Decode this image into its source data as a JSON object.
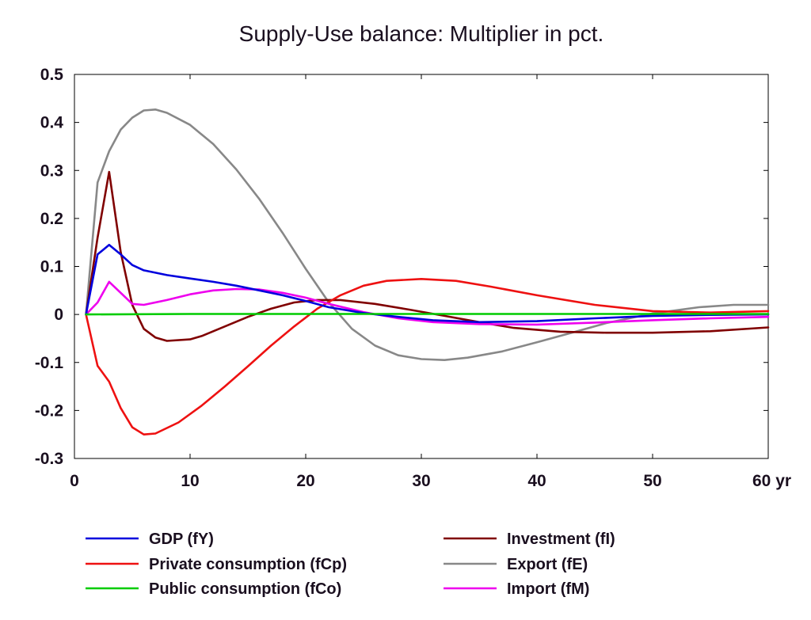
{
  "chart_data": {
    "type": "line",
    "title": "Supply-Use balance: Multiplier in pct.",
    "xlabel": "",
    "ylabel": "",
    "xlim": [
      0,
      60
    ],
    "ylim": [
      -0.3,
      0.5
    ],
    "x_ticks": [
      0,
      10,
      20,
      30,
      40,
      50,
      60
    ],
    "x_tick_labels": [
      "0",
      "10",
      "20",
      "30",
      "40",
      "50",
      "60 yr"
    ],
    "y_ticks": [
      0.5,
      0.4,
      0.3,
      0.2,
      0.1,
      0,
      -0.1,
      -0.2,
      -0.3
    ],
    "y_tick_labels": [
      "0.5",
      "0.4",
      "0.3",
      "0.2",
      "0.1",
      "0",
      "-0.1",
      "-0.2",
      "-0.3"
    ],
    "grid": false,
    "legend_position": "bottom",
    "series": [
      {
        "name": "GDP (fY)",
        "color": "#0000dd",
        "points": [
          [
            1,
            0
          ],
          [
            2,
            0.125
          ],
          [
            3,
            0.145
          ],
          [
            4,
            0.125
          ],
          [
            5,
            0.103
          ],
          [
            6,
            0.092
          ],
          [
            8,
            0.082
          ],
          [
            10,
            0.075
          ],
          [
            12,
            0.068
          ],
          [
            14,
            0.06
          ],
          [
            16,
            0.05
          ],
          [
            18,
            0.04
          ],
          [
            20,
            0.028
          ],
          [
            22,
            0.015
          ],
          [
            25,
            0.003
          ],
          [
            28,
            -0.005
          ],
          [
            31,
            -0.012
          ],
          [
            35,
            -0.016
          ],
          [
            40,
            -0.014
          ],
          [
            45,
            -0.008
          ],
          [
            50,
            -0.003
          ],
          [
            55,
            -0.001
          ],
          [
            60,
            0
          ]
        ]
      },
      {
        "name": "Private consumption (fCp)",
        "color": "#ee1111",
        "points": [
          [
            1,
            0
          ],
          [
            2,
            -0.107
          ],
          [
            3,
            -0.14
          ],
          [
            4,
            -0.195
          ],
          [
            5,
            -0.235
          ],
          [
            6,
            -0.25
          ],
          [
            7,
            -0.248
          ],
          [
            9,
            -0.225
          ],
          [
            11,
            -0.19
          ],
          [
            13,
            -0.15
          ],
          [
            15,
            -0.108
          ],
          [
            17,
            -0.065
          ],
          [
            19,
            -0.025
          ],
          [
            21,
            0.012
          ],
          [
            23,
            0.04
          ],
          [
            25,
            0.06
          ],
          [
            27,
            0.07
          ],
          [
            30,
            0.074
          ],
          [
            33,
            0.07
          ],
          [
            36,
            0.058
          ],
          [
            40,
            0.04
          ],
          [
            45,
            0.02
          ],
          [
            50,
            0.007
          ],
          [
            55,
            0.004
          ],
          [
            60,
            0.007
          ]
        ]
      },
      {
        "name": "Public consumption (fCo)",
        "color": "#00cc00",
        "points": [
          [
            1,
            0
          ],
          [
            10,
            0.001
          ],
          [
            20,
            0.001
          ],
          [
            30,
            0.001
          ],
          [
            40,
            0.001
          ],
          [
            50,
            0.001
          ],
          [
            60,
            0.001
          ]
        ]
      },
      {
        "name": "Investment (fI)",
        "color": "#800000",
        "points": [
          [
            1,
            0
          ],
          [
            2,
            0.16
          ],
          [
            3,
            0.297
          ],
          [
            4,
            0.13
          ],
          [
            5,
            0.02
          ],
          [
            6,
            -0.03
          ],
          [
            7,
            -0.048
          ],
          [
            8,
            -0.055
          ],
          [
            10,
            -0.052
          ],
          [
            11,
            -0.045
          ],
          [
            13,
            -0.025
          ],
          [
            15,
            -0.005
          ],
          [
            17,
            0.012
          ],
          [
            19,
            0.025
          ],
          [
            21,
            0.03
          ],
          [
            23,
            0.03
          ],
          [
            26,
            0.022
          ],
          [
            29,
            0.01
          ],
          [
            32,
            -0.003
          ],
          [
            35,
            -0.016
          ],
          [
            38,
            -0.028
          ],
          [
            42,
            -0.036
          ],
          [
            46,
            -0.038
          ],
          [
            50,
            -0.038
          ],
          [
            55,
            -0.035
          ],
          [
            60,
            -0.027
          ]
        ]
      },
      {
        "name": "Export (fE)",
        "color": "#888888",
        "points": [
          [
            1,
            0
          ],
          [
            2,
            0.275
          ],
          [
            3,
            0.34
          ],
          [
            4,
            0.385
          ],
          [
            5,
            0.41
          ],
          [
            6,
            0.425
          ],
          [
            7,
            0.427
          ],
          [
            8,
            0.42
          ],
          [
            10,
            0.395
          ],
          [
            12,
            0.355
          ],
          [
            14,
            0.302
          ],
          [
            16,
            0.24
          ],
          [
            18,
            0.17
          ],
          [
            20,
            0.095
          ],
          [
            22,
            0.025
          ],
          [
            24,
            -0.03
          ],
          [
            26,
            -0.065
          ],
          [
            28,
            -0.085
          ],
          [
            30,
            -0.093
          ],
          [
            32,
            -0.095
          ],
          [
            34,
            -0.09
          ],
          [
            37,
            -0.077
          ],
          [
            40,
            -0.058
          ],
          [
            43,
            -0.038
          ],
          [
            46,
            -0.018
          ],
          [
            50,
            0.002
          ],
          [
            54,
            0.015
          ],
          [
            57,
            0.02
          ],
          [
            60,
            0.02
          ]
        ]
      },
      {
        "name": "Import (fM)",
        "color": "#ee00ee",
        "points": [
          [
            1,
            0
          ],
          [
            2,
            0.025
          ],
          [
            3,
            0.068
          ],
          [
            4,
            0.045
          ],
          [
            5,
            0.022
          ],
          [
            6,
            0.02
          ],
          [
            8,
            0.03
          ],
          [
            10,
            0.042
          ],
          [
            12,
            0.05
          ],
          [
            14,
            0.053
          ],
          [
            16,
            0.052
          ],
          [
            18,
            0.045
          ],
          [
            20,
            0.035
          ],
          [
            22,
            0.022
          ],
          [
            25,
            0.005
          ],
          [
            28,
            -0.008
          ],
          [
            31,
            -0.016
          ],
          [
            35,
            -0.02
          ],
          [
            40,
            -0.021
          ],
          [
            45,
            -0.017
          ],
          [
            50,
            -0.012
          ],
          [
            55,
            -0.008
          ],
          [
            60,
            -0.005
          ]
        ]
      }
    ]
  }
}
